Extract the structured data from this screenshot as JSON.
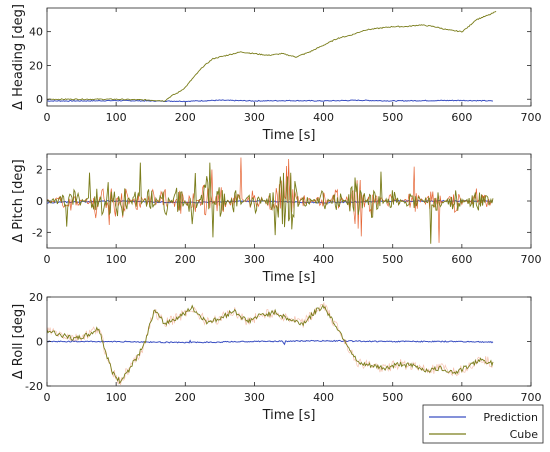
{
  "colors": {
    "prediction": "#3a4fc2",
    "cube": "#7a7d1b",
    "cube_noisy": "#e2541f",
    "axis": "#262626",
    "grid": "#000000"
  },
  "legend": {
    "placement": "bottom-right",
    "entries": [
      "Prediction",
      "Cube"
    ]
  },
  "chart_data": [
    {
      "type": "line",
      "xlabel": "Time [s]",
      "ylabel": "Δ Heading [deg]",
      "xlim": [
        0,
        700
      ],
      "ylim": [
        -4,
        54
      ],
      "xticks": [
        0,
        100,
        200,
        300,
        400,
        500,
        600,
        700
      ],
      "yticks": [
        0,
        20,
        40
      ],
      "grid": false,
      "series": [
        {
          "name": "Prediction",
          "x": [
            0,
            50,
            100,
            150,
            200,
            250,
            300,
            350,
            400,
            450,
            500,
            550,
            600,
            645
          ],
          "values": [
            -1,
            -1,
            -0.8,
            -1,
            -1.2,
            -0.6,
            -1,
            -0.8,
            -1,
            -0.6,
            -1,
            -0.8,
            -0.7,
            -1
          ]
        },
        {
          "name": "Cube",
          "x": [
            0,
            50,
            100,
            150,
            170,
            180,
            190,
            200,
            210,
            225,
            240,
            260,
            280,
            300,
            320,
            340,
            360,
            380,
            400,
            420,
            440,
            460,
            480,
            500,
            520,
            540,
            560,
            580,
            600,
            610,
            620,
            640,
            650
          ],
          "values": [
            0,
            0,
            0,
            -0.5,
            -1,
            2,
            4,
            7,
            12,
            19,
            24,
            26,
            28,
            27,
            26,
            27,
            25,
            28,
            32,
            36,
            38,
            41,
            42,
            43,
            43,
            44,
            43,
            41,
            40,
            43,
            47,
            50,
            52
          ]
        }
      ]
    },
    {
      "type": "line",
      "xlabel": "Time [s]",
      "ylabel": "Δ Pitch [deg]",
      "xlim": [
        0,
        700
      ],
      "ylim": [
        -3,
        3
      ],
      "xticks": [
        0,
        100,
        200,
        300,
        400,
        500,
        600,
        700
      ],
      "yticks": [
        -2,
        0,
        2
      ],
      "grid": false,
      "series": [
        {
          "name": "Prediction",
          "x": [
            0,
            100,
            200,
            300,
            400,
            500,
            600,
            645
          ],
          "values": [
            -0.1,
            0,
            -0.1,
            0,
            -0.1,
            0,
            0,
            0
          ]
        },
        {
          "name": "Cube",
          "x": [
            0,
            20,
            40,
            60,
            70,
            80,
            90,
            100,
            110,
            130,
            150,
            170,
            190,
            210,
            230,
            250,
            270,
            300,
            330,
            350,
            370,
            400,
            420,
            450,
            470,
            500,
            530,
            560,
            590,
            620,
            645
          ],
          "values": [
            0.1,
            0.3,
            0.7,
            -0.3,
            1.4,
            -1.3,
            1.8,
            -1.5,
            1.2,
            -0.9,
            1.0,
            -1.1,
            1.3,
            -1.4,
            1.6,
            -1.2,
            0.8,
            -0.8,
            0.9,
            2.6,
            -0.6,
            0.7,
            -0.9,
            1.8,
            -1.1,
            0.7,
            -0.8,
            0.9,
            -0.8,
            0.8,
            0.2
          ]
        }
      ]
    },
    {
      "type": "line",
      "xlabel": "Time [s]",
      "ylabel": "Δ Roll [deg]",
      "xlim": [
        0,
        700
      ],
      "ylim": [
        -20,
        20
      ],
      "xticks": [
        0,
        100,
        200,
        300,
        400,
        500,
        600,
        700
      ],
      "yticks": [
        -20,
        0,
        20
      ],
      "grid": false,
      "series": [
        {
          "name": "Prediction",
          "x": [
            0,
            100,
            200,
            300,
            400,
            500,
            600,
            645
          ],
          "values": [
            0,
            0,
            -0.5,
            0,
            0.3,
            0,
            0,
            -0.3
          ]
        },
        {
          "name": "Cube",
          "x": [
            0,
            20,
            40,
            60,
            75,
            85,
            95,
            105,
            120,
            140,
            155,
            170,
            190,
            210,
            230,
            250,
            270,
            290,
            310,
            330,
            350,
            370,
            390,
            400,
            410,
            430,
            450,
            470,
            490,
            510,
            530,
            550,
            570,
            590,
            610,
            630,
            645
          ],
          "values": [
            5,
            3,
            1,
            3,
            6,
            -5,
            -14,
            -18,
            -12,
            -2,
            14,
            8,
            11,
            15,
            9,
            10,
            14,
            9,
            12,
            13,
            10,
            8,
            14,
            16,
            11,
            1,
            -10,
            -11,
            -12,
            -10,
            -11,
            -13,
            -12,
            -14,
            -11,
            -8,
            -10
          ]
        }
      ]
    }
  ]
}
